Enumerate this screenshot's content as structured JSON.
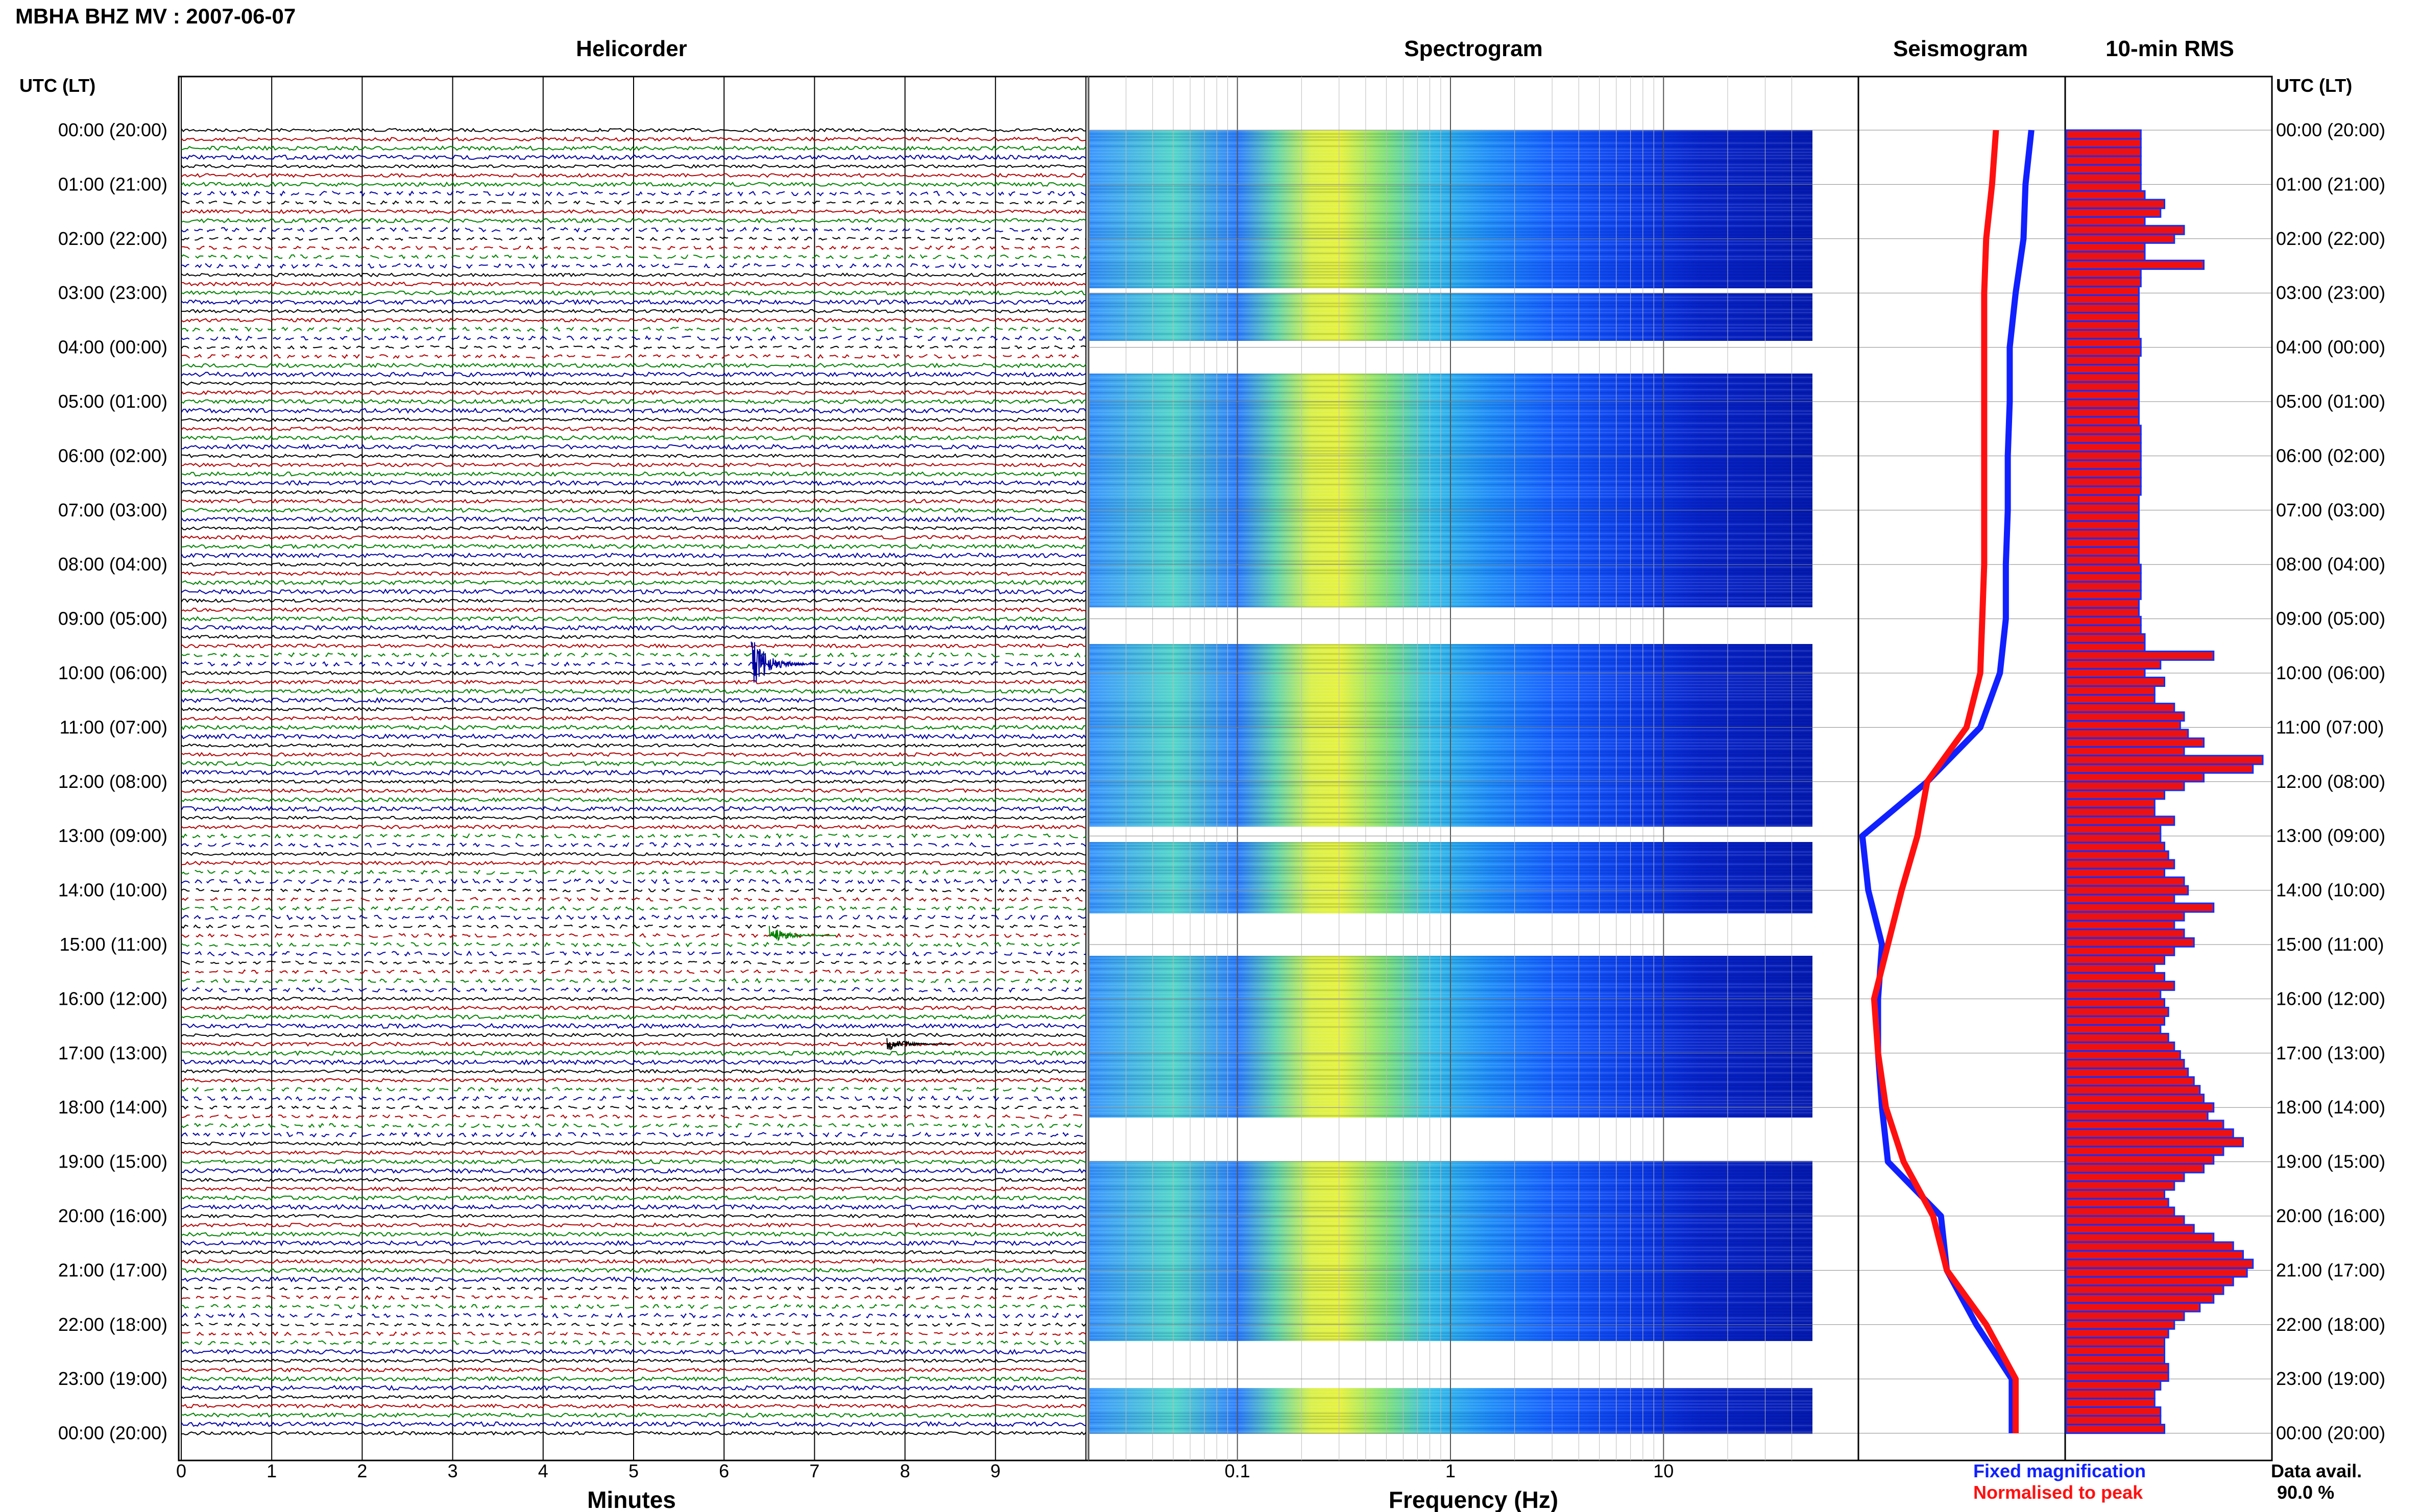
{
  "header": {
    "title": "MBHA BHZ MV : 2007-06-07"
  },
  "panels": {
    "helicorder": "Helicorder",
    "spectrogram": "Spectrogram",
    "seismogram": "Seismogram",
    "rms": "10-min RMS"
  },
  "axis": {
    "left_header": "UTC (LT)",
    "right_header": "UTC (LT)",
    "time_labels": [
      "00:00 (20:00)",
      "01:00 (21:00)",
      "02:00 (22:00)",
      "03:00 (23:00)",
      "04:00 (00:00)",
      "05:00 (01:00)",
      "06:00 (02:00)",
      "07:00 (03:00)",
      "08:00 (04:00)",
      "09:00 (05:00)",
      "10:00 (06:00)",
      "11:00 (07:00)",
      "12:00 (08:00)",
      "13:00 (09:00)",
      "14:00 (10:00)",
      "15:00 (11:00)",
      "16:00 (12:00)",
      "17:00 (13:00)",
      "18:00 (14:00)",
      "19:00 (15:00)",
      "20:00 (16:00)",
      "21:00 (17:00)",
      "22:00 (18:00)",
      "23:00 (19:00)",
      "00:00 (20:00)"
    ],
    "minutes_label": "Minutes",
    "minutes_ticks": [
      "0",
      "1",
      "2",
      "3",
      "4",
      "5",
      "6",
      "7",
      "8",
      "9"
    ],
    "frequency_label": "Frequency (Hz)",
    "frequency_ticks": [
      "0.1",
      "1",
      "10"
    ]
  },
  "legend": {
    "fixed": "Fixed magnification",
    "normalised": "Normalised to peak",
    "fixed_color": "#1020ff",
    "normalised_color": "#ff1010"
  },
  "availability": {
    "label": "Data avail.",
    "value": "90.0 %"
  },
  "colors": {
    "trace_black": "#000000",
    "trace_red": "#b00000",
    "trace_green": "#008000",
    "trace_blue": "#0000a0",
    "bar_fill": "#ee1111",
    "bar_edge": "#1030ff"
  },
  "chart_data": [
    {
      "type": "line",
      "title": "Helicorder",
      "xlabel": "Minutes",
      "xlim": [
        0,
        10
      ],
      "ylabel": "UTC (LT)",
      "trace_colors_cycle": [
        "black",
        "red",
        "green",
        "blue"
      ],
      "events": [
        {
          "time": "09:50",
          "minute": 6.3,
          "color": "blue"
        },
        {
          "time": "14:50",
          "minute": 6.5,
          "color": "green"
        },
        {
          "time": "16:50",
          "minute": 7.8,
          "color": "black"
        }
      ]
    },
    {
      "type": "heatmap",
      "title": "Spectrogram",
      "xlabel": "Frequency (Hz)",
      "xscale": "log",
      "xlim": [
        0.02,
        50
      ],
      "peak_frequency_hz": 0.25,
      "colormap": "jet"
    },
    {
      "type": "line",
      "title": "Seismogram",
      "series": [
        {
          "name": "Fixed magnification",
          "color": "blue",
          "x_rel": [
            0.88,
            0.85,
            0.84,
            0.8,
            0.77,
            0.77,
            0.76,
            0.76,
            0.75,
            0.75,
            0.72,
            0.62,
            0.35,
            0.02,
            0.05,
            0.12,
            0.1,
            0.1,
            0.12,
            0.15,
            0.42,
            0.45,
            0.6,
            0.78,
            0.78
          ]
        },
        {
          "name": "Normalised to peak",
          "color": "red",
          "x_rel": [
            0.7,
            0.68,
            0.65,
            0.64,
            0.64,
            0.64,
            0.64,
            0.64,
            0.64,
            0.63,
            0.62,
            0.55,
            0.35,
            0.3,
            0.22,
            0.15,
            0.08,
            0.1,
            0.14,
            0.23,
            0.38,
            0.45,
            0.65,
            0.8,
            0.8
          ]
        }
      ]
    },
    {
      "type": "bar",
      "title": "10-min RMS",
      "values": [
        38,
        38,
        38,
        38,
        38,
        38,
        38,
        40,
        50,
        48,
        40,
        60,
        55,
        40,
        40,
        70,
        38,
        38,
        37,
        37,
        37,
        37,
        37,
        37,
        38,
        38,
        37,
        37,
        37,
        37,
        37,
        37,
        37,
        37,
        38,
        38,
        38,
        38,
        38,
        38,
        38,
        38,
        37,
        37,
        37,
        37,
        37,
        37,
        37,
        37,
        38,
        38,
        38,
        38,
        37,
        37,
        38,
        38,
        40,
        40,
        75,
        48,
        40,
        50,
        45,
        45,
        55,
        60,
        58,
        62,
        70,
        60,
        100,
        95,
        70,
        60,
        50,
        45,
        45,
        55,
        48,
        48,
        50,
        52,
        55,
        50,
        60,
        62,
        55,
        75,
        60,
        55,
        60,
        65,
        55,
        50,
        45,
        50,
        55,
        48,
        50,
        52,
        50,
        48,
        52,
        55,
        58,
        60,
        62,
        65,
        68,
        70,
        75,
        72,
        80,
        85,
        90,
        80,
        75,
        70,
        60,
        55,
        50,
        52,
        55,
        60,
        65,
        75,
        85,
        90,
        95,
        92,
        85,
        80,
        75,
        68,
        60,
        55,
        52,
        50,
        50,
        50,
        52,
        52,
        48,
        45,
        45,
        48,
        48,
        50
      ]
    }
  ]
}
